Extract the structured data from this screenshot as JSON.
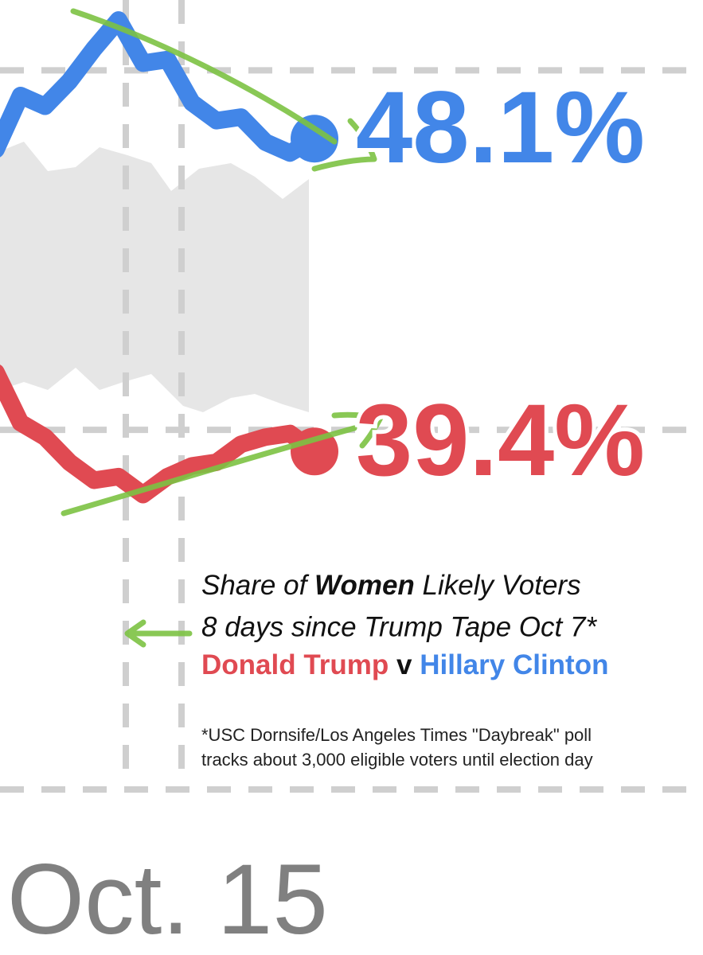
{
  "chart_data": {
    "type": "line",
    "title_parts": [
      "Share of ",
      "Women",
      " Likely Voters"
    ],
    "subtitle": "8 days since Trump Tape Oct 7*",
    "legend_separator": "v",
    "note": [
      "*USC Dornsife/Los Angeles Times \"Daybreak\" poll",
      "tracks about 3,000 eligible voters until election day"
    ],
    "categories": [
      null,
      null,
      null,
      null,
      null,
      null,
      null,
      "Oct. 15",
      null,
      null,
      null,
      null,
      null,
      null
    ],
    "series": [
      {
        "name": "Hillary Clinton",
        "color": "#4286e8",
        "values": [
          47.8,
          49.3,
          49.0,
          49.7,
          50.6,
          51.4,
          50.2,
          50.3,
          49.1,
          48.6,
          48.7,
          48.0,
          47.7,
          48.1
        ],
        "value_labels": [
          null,
          null,
          null,
          null,
          null,
          null,
          null,
          null,
          null,
          null,
          null,
          null,
          null,
          "48.1%"
        ]
      },
      {
        "name": "Donald Trump",
        "color": "#e04a52",
        "values": [
          41.6,
          40.2,
          39.8,
          39.1,
          38.6,
          38.7,
          38.2,
          38.7,
          39.0,
          39.1,
          39.6,
          39.8,
          39.9,
          39.4
        ],
        "value_labels": [
          null,
          null,
          null,
          null,
          null,
          null,
          null,
          null,
          null,
          null,
          null,
          null,
          null,
          "39.4%"
        ]
      }
    ],
    "ylim": [
      30,
      52
    ],
    "yticks": [
      30,
      40,
      50
    ],
    "grid": true
  }
}
